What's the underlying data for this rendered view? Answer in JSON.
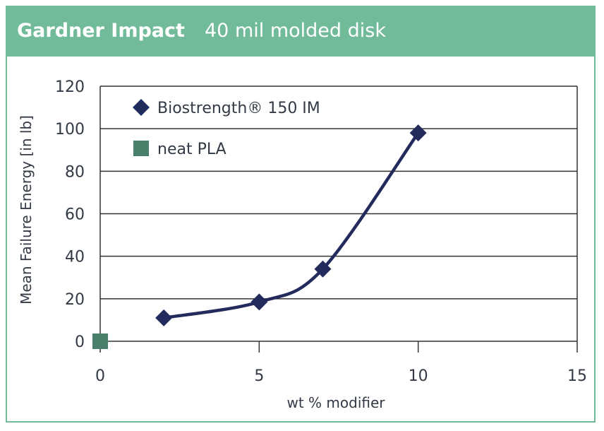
{
  "header": {
    "title": "Gardner Impact",
    "subtitle": "40 mil molded disk"
  },
  "colors": {
    "header_bg": "#72bb9a",
    "series_biostrength": "#232a5c",
    "series_neat_pla": "#4a7f6c",
    "grid": "#333333"
  },
  "chart_data": {
    "type": "scatter",
    "title": "Gardner Impact 40 mil molded disk",
    "xlabel": "wt % modifier",
    "ylabel": "Mean Failure Energy [in lb]",
    "xlim": [
      0,
      15
    ],
    "ylim": [
      0,
      120
    ],
    "x_ticks": [
      0,
      5,
      10,
      15
    ],
    "y_ticks": [
      0,
      20,
      40,
      60,
      80,
      100,
      120
    ],
    "grid": "horizontal",
    "legend_position": "top-left",
    "series": [
      {
        "name": "Biostrength® 150 IM",
        "marker": "diamond",
        "line": "smooth",
        "color": "#232a5c",
        "x": [
          2,
          5,
          7,
          10
        ],
        "y": [
          11,
          18.5,
          34,
          98
        ]
      },
      {
        "name": "neat PLA",
        "marker": "square",
        "line": "none",
        "color": "#4a7f6c",
        "x": [
          0
        ],
        "y": [
          0
        ]
      }
    ]
  }
}
